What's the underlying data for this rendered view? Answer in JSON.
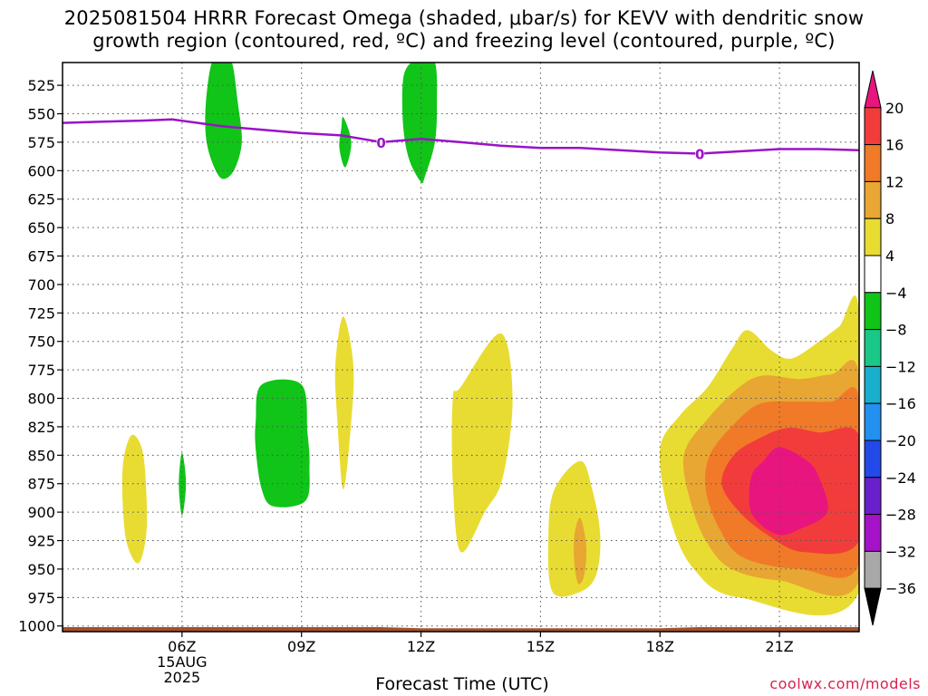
{
  "title_lines": [
    "2025081504 HRRR Forecast Omega (shaded, μbar/s) for KEVV with dendritic snow",
    "growth region (contoured, red, ºC) and freezing level (contoured, purple, ºC)"
  ],
  "credit": "coolwx.com/models",
  "chart_data": {
    "type": "contour",
    "title": "2025081504 HRRR Forecast Omega (shaded, μbar/s) for KEVV with dendritic snow growth region (contoured, red, ºC) and freezing level (contoured, purple, ºC)",
    "xlabel": "Forecast Time (UTC)",
    "ylabel": "",
    "x_range_hours_utc": [
      3.0,
      23.0
    ],
    "y_range_hpa": [
      1005,
      505
    ],
    "y_ticks": [
      525,
      550,
      575,
      600,
      625,
      650,
      675,
      700,
      725,
      750,
      775,
      800,
      825,
      850,
      875,
      900,
      925,
      950,
      975,
      1000
    ],
    "x_ticks": [
      {
        "hour": 6,
        "label": "06Z",
        "date": "15AUG",
        "year": "2025"
      },
      {
        "hour": 9,
        "label": "09Z"
      },
      {
        "hour": 12,
        "label": "12Z"
      },
      {
        "hour": 15,
        "label": "15Z"
      },
      {
        "hour": 18,
        "label": "18Z"
      },
      {
        "hour": 21,
        "label": "21Z"
      }
    ],
    "grid": "dotted",
    "colorbar": {
      "placement": "right",
      "labels": [
        "20",
        "16",
        "12",
        "8",
        "4",
        "−4",
        "−8",
        "−12",
        "−16",
        "−20",
        "−24",
        "−28",
        "−32",
        "−36"
      ],
      "bins": [
        {
          "color": "#e8157e",
          "label": ">20"
        },
        {
          "color": "#f23c3c",
          "label": "16 to 20"
        },
        {
          "color": "#f07a28",
          "label": "12 to 16"
        },
        {
          "color": "#e8a632",
          "label": "8 to 12"
        },
        {
          "color": "#e8dc32",
          "label": "4 to 8"
        },
        {
          "color": "#ffffff",
          "label": "-4 to 4"
        },
        {
          "color": "#10c418",
          "label": "-8 to -4"
        },
        {
          "color": "#19c887",
          "label": "-12 to -8"
        },
        {
          "color": "#19aecc",
          "label": "-16 to -12"
        },
        {
          "color": "#2290ee",
          "label": "-20 to -16"
        },
        {
          "color": "#2349e8",
          "label": "-24 to -20"
        },
        {
          "color": "#6a1fcc",
          "label": "-28 to -24"
        },
        {
          "color": "#a612c8",
          "label": "-32 to -28"
        },
        {
          "color": "#a8a8a8",
          "label": "-36 to -32"
        },
        {
          "color": "#000000",
          "label": "<-36"
        }
      ]
    },
    "freezing_level": {
      "color": "#9b12c8",
      "contour_label": "0",
      "points": [
        [
          3.0,
          558
        ],
        [
          4.0,
          557
        ],
        [
          5.0,
          556
        ],
        [
          5.75,
          555
        ],
        [
          7.0,
          561
        ],
        [
          8.0,
          564
        ],
        [
          9.0,
          567
        ],
        [
          10.0,
          569
        ],
        [
          11.0,
          575
        ],
        [
          12.0,
          572
        ],
        [
          13.0,
          575
        ],
        [
          14.0,
          578
        ],
        [
          15.0,
          580
        ],
        [
          16.0,
          580
        ],
        [
          17.0,
          582
        ],
        [
          18.0,
          584
        ],
        [
          19.0,
          585
        ],
        [
          20.0,
          583
        ],
        [
          21.0,
          581
        ],
        [
          22.0,
          581
        ],
        [
          23.0,
          582
        ]
      ]
    },
    "omega_regions": [
      {
        "value": "-8 to -4",
        "points": [
          [
            7.0,
            505
          ],
          [
            7.25,
            505
          ],
          [
            7.4,
            540
          ],
          [
            7.5,
            575
          ],
          [
            7.3,
            600
          ],
          [
            7.0,
            607
          ],
          [
            6.75,
            592
          ],
          [
            6.6,
            570
          ],
          [
            6.6,
            540
          ],
          [
            6.75,
            505
          ]
        ]
      },
      {
        "value": "-8 to -4",
        "points": [
          [
            12.0,
            505
          ],
          [
            12.35,
            505
          ],
          [
            12.4,
            540
          ],
          [
            12.35,
            575
          ],
          [
            12.1,
            605
          ],
          [
            12.0,
            610
          ],
          [
            11.7,
            590
          ],
          [
            11.55,
            560
          ],
          [
            11.55,
            520
          ],
          [
            11.75,
            505
          ]
        ]
      },
      {
        "value": "-8 to -4",
        "points": [
          [
            10.05,
            553
          ],
          [
            10.25,
            575
          ],
          [
            10.1,
            597
          ],
          [
            9.95,
            580
          ],
          [
            10.0,
            563
          ]
        ]
      },
      {
        "value": "-8 to -4",
        "points": [
          [
            8.0,
            788
          ],
          [
            9.0,
            788
          ],
          [
            9.15,
            830
          ],
          [
            9.2,
            860
          ],
          [
            9.1,
            890
          ],
          [
            8.3,
            895
          ],
          [
            8.0,
            880
          ],
          [
            7.85,
            845
          ],
          [
            7.85,
            820
          ]
        ]
      },
      {
        "value": "-8 to -4",
        "points": [
          [
            6.0,
            848
          ],
          [
            6.1,
            875
          ],
          [
            6.0,
            903
          ],
          [
            5.92,
            875
          ]
        ]
      },
      {
        "value": "4 to 8",
        "points": [
          [
            4.75,
            832
          ],
          [
            5.0,
            845
          ],
          [
            5.1,
            880
          ],
          [
            5.1,
            920
          ],
          [
            4.9,
            945
          ],
          [
            4.6,
            925
          ],
          [
            4.5,
            880
          ],
          [
            4.55,
            850
          ]
        ]
      },
      {
        "value": "4 to 8",
        "points": [
          [
            10.05,
            728
          ],
          [
            10.3,
            770
          ],
          [
            10.25,
            820
          ],
          [
            10.05,
            880
          ],
          [
            9.9,
            820
          ],
          [
            9.85,
            770
          ]
        ]
      },
      {
        "value": "4 to 8",
        "points": [
          [
            14.0,
            743
          ],
          [
            14.3,
            800
          ],
          [
            14.05,
            870
          ],
          [
            13.6,
            900
          ],
          [
            13.0,
            935
          ],
          [
            12.8,
            875
          ],
          [
            12.8,
            800
          ],
          [
            13.0,
            790
          ]
        ]
      },
      {
        "value": "4 to 8",
        "points": [
          [
            16.0,
            855
          ],
          [
            16.3,
            880
          ],
          [
            16.5,
            920
          ],
          [
            16.4,
            955
          ],
          [
            16.0,
            970
          ],
          [
            15.3,
            970
          ],
          [
            15.2,
            920
          ],
          [
            15.35,
            880
          ]
        ]
      },
      {
        "value": "8 to 12",
        "points": [
          [
            16.0,
            905
          ],
          [
            16.15,
            930
          ],
          [
            16.1,
            955
          ],
          [
            15.95,
            963
          ],
          [
            15.85,
            945
          ],
          [
            15.85,
            920
          ]
        ]
      },
      {
        "value": "4 to 8",
        "points": [
          [
            23.0,
            725
          ],
          [
            23.0,
            970
          ],
          [
            20.0,
            975
          ],
          [
            18.85,
            950
          ],
          [
            18.25,
            905
          ],
          [
            18.0,
            845
          ],
          [
            18.5,
            815
          ],
          [
            19.2,
            790
          ],
          [
            19.8,
            757
          ],
          [
            20.2,
            740
          ],
          [
            20.8,
            758
          ],
          [
            21.3,
            765
          ],
          [
            22.0,
            750
          ],
          [
            22.5,
            737
          ]
        ]
      },
      {
        "value": "8 to 12",
        "points": [
          [
            23.0,
            780
          ],
          [
            23.0,
            960
          ],
          [
            21.0,
            960
          ],
          [
            19.8,
            950
          ],
          [
            19.2,
            928
          ],
          [
            18.8,
            895
          ],
          [
            18.6,
            850
          ],
          [
            19.2,
            818
          ],
          [
            20.0,
            790
          ],
          [
            20.6,
            780
          ],
          [
            21.5,
            783
          ],
          [
            22.3,
            779
          ]
        ]
      },
      {
        "value": "12 to 16",
        "points": [
          [
            23.0,
            800
          ],
          [
            23.0,
            945
          ],
          [
            21.5,
            950
          ],
          [
            20.1,
            940
          ],
          [
            19.5,
            915
          ],
          [
            19.15,
            880
          ],
          [
            19.25,
            850
          ],
          [
            19.8,
            825
          ],
          [
            20.5,
            805
          ],
          [
            21.5,
            803
          ],
          [
            22.3,
            803
          ]
        ]
      },
      {
        "value": "16 to 20",
        "points": [
          [
            23.0,
            833
          ],
          [
            23.0,
            925
          ],
          [
            21.6,
            935
          ],
          [
            20.7,
            920
          ],
          [
            20.0,
            900
          ],
          [
            19.55,
            875
          ],
          [
            19.85,
            850
          ],
          [
            20.5,
            835
          ],
          [
            21.2,
            826
          ],
          [
            22.0,
            830
          ]
        ]
      },
      {
        "value": ">20",
        "points": [
          [
            21.0,
            843
          ],
          [
            21.7,
            855
          ],
          [
            22.0,
            870
          ],
          [
            22.2,
            900
          ],
          [
            21.5,
            915
          ],
          [
            21.0,
            920
          ],
          [
            20.5,
            910
          ],
          [
            20.25,
            895
          ],
          [
            20.3,
            868
          ],
          [
            20.6,
            855
          ]
        ]
      }
    ],
    "terrain": {
      "color": "#a0522d",
      "base_hpa": 1005,
      "points": [
        [
          3.0,
          1001
        ],
        [
          9.0,
          1001
        ],
        [
          11.0,
          1001
        ],
        [
          12.0,
          1002
        ],
        [
          16.0,
          1002
        ],
        [
          18.0,
          1002
        ],
        [
          19.0,
          1001
        ],
        [
          23.0,
          1001
        ]
      ]
    }
  }
}
